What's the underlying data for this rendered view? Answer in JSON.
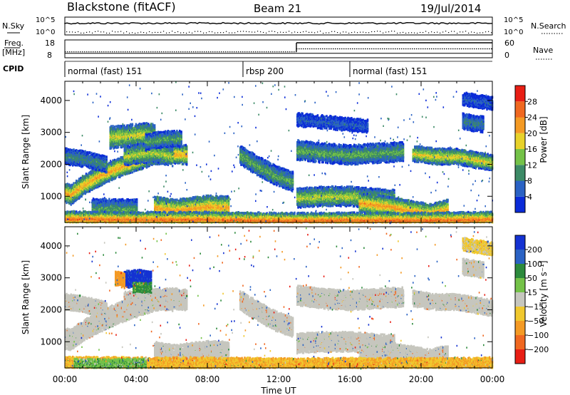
{
  "header": {
    "station": "Blackstone (fitACF)",
    "beam": "Beam 21",
    "date": "19/Jul/2014"
  },
  "noise_panel": {
    "left_label": "N.Sky",
    "right_label": "N.Search",
    "left_ticks": [
      "10^5",
      "10^0"
    ],
    "right_ticks": [
      "10^5",
      "10^0"
    ]
  },
  "freq_panel": {
    "left_label_1": "Freq.",
    "left_label_2": "[MHz]",
    "right_label": "Nave",
    "left_ticks": [
      "18",
      "8"
    ],
    "right_ticks": [
      "60",
      "0"
    ],
    "freq_mhz": 10.5,
    "nave_segments": [
      {
        "start_hour": 0,
        "end_hour": 13,
        "value": 20
      },
      {
        "start_hour": 13,
        "end_hour": 24,
        "value": 30
      }
    ]
  },
  "cpid": {
    "label": "CPID",
    "segments": [
      {
        "start_hour": 0,
        "end_hour": 10,
        "label": "normal (fast) 151"
      },
      {
        "start_hour": 10,
        "end_hour": 16,
        "label": "rbsp 200"
      },
      {
        "start_hour": 16,
        "end_hour": 24,
        "label": "normal (fast) 151"
      }
    ]
  },
  "chart_data": [
    {
      "type": "heatmap",
      "quantity": "power",
      "ylabel": "Slant Range [km]",
      "ylim": [
        180,
        4600
      ],
      "yticks": [
        "1000",
        "2000",
        "3000",
        "4000"
      ],
      "colorbar": {
        "label": "Power [dB]",
        "ticks": [
          "4",
          "8",
          "12",
          "16",
          "20",
          "24",
          "28"
        ],
        "colors": [
          "#0a2bd8",
          "#2a62c4",
          "#3c8a66",
          "#74c248",
          "#e8d22a",
          "#f49a24",
          "#f06820",
          "#e81e14"
        ]
      },
      "bands": [
        {
          "t": [
            0.0,
            0.3,
            1.0,
            2.0,
            3.0,
            4.0,
            5.0,
            6.0,
            6.8
          ],
          "r": [
            1100,
            1050,
            1350,
            1650,
            1900,
            2100,
            2300,
            2350,
            2300
          ],
          "w": 300,
          "db": 22
        },
        {
          "t": [
            2.5,
            3.5,
            4.5,
            5.0
          ],
          "r": [
            2850,
            2900,
            2950,
            2900
          ],
          "w": 350,
          "db": 18
        },
        {
          "t": [
            3.3,
            4.3,
            5.2,
            6.0
          ],
          "r": [
            2250,
            2350,
            2350,
            2250
          ],
          "w": 300,
          "db": 17
        },
        {
          "t": [
            0.0,
            0.8,
            1.6,
            2.3
          ],
          "r": [
            2250,
            2200,
            2100,
            2000
          ],
          "w": 250,
          "db": 10
        },
        {
          "t": [
            4.5,
            5.5,
            6.5
          ],
          "r": [
            2700,
            2800,
            2800
          ],
          "w": 250,
          "db": 12
        },
        {
          "t": [
            5.0,
            6.2,
            7.0,
            8.0,
            9.2
          ],
          "r": [
            650,
            550,
            620,
            680,
            650
          ],
          "w": 350,
          "db": 22
        },
        {
          "t": [
            1.5,
            2.8,
            4.0
          ],
          "r": [
            620,
            600,
            600
          ],
          "w": 300,
          "db": 12
        },
        {
          "t": [
            9.8,
            10.8,
            11.8,
            12.8
          ],
          "r": [
            2300,
            1950,
            1650,
            1450
          ],
          "w": 300,
          "db": 13
        },
        {
          "t": [
            13.0,
            14.5,
            16.0,
            17.0,
            18.5
          ],
          "r": [
            950,
            1000,
            1000,
            950,
            900
          ],
          "w": 300,
          "db": 17
        },
        {
          "t": [
            16.5,
            18.0,
            19.5,
            20.5,
            21.5
          ],
          "r": [
            800,
            700,
            550,
            450,
            600
          ],
          "w": 300,
          "db": 23
        },
        {
          "t": [
            13.0,
            14.5,
            16.0,
            17.5,
            19.0
          ],
          "r": [
            2450,
            2350,
            2300,
            2350,
            2400
          ],
          "w": 300,
          "db": 13
        },
        {
          "t": [
            19.5,
            20.8,
            22.0,
            24.0
          ],
          "r": [
            2350,
            2250,
            2250,
            2050
          ],
          "w": 250,
          "db": 19
        },
        {
          "t": [
            0.0,
            4.0,
            8.0,
            12.0,
            16.0,
            20.0,
            24.0
          ],
          "r": [
            300,
            280,
            280,
            250,
            260,
            260,
            280
          ],
          "w": 220,
          "db": 26
        },
        {
          "t": [
            22.3,
            23.5
          ],
          "r": [
            3350,
            3250
          ],
          "w": 250,
          "db": 9
        },
        {
          "t": [
            22.3,
            24.0
          ],
          "r": [
            4050,
            3900
          ],
          "w": 200,
          "db": 6
        },
        {
          "t": [
            13.0,
            15.0,
            17.0
          ],
          "r": [
            3400,
            3300,
            3200
          ],
          "w": 200,
          "db": 6
        }
      ]
    },
    {
      "type": "heatmap",
      "quantity": "velocity",
      "xlabel": "Time UT",
      "ylabel": "Slant Range [km]",
      "ylim": [
        180,
        4600
      ],
      "yticks": [
        "1000",
        "2000",
        "3000",
        "4000"
      ],
      "xticks": [
        "00:00",
        "04:00",
        "08:00",
        "12:00",
        "16:00",
        "20:00",
        "00:00"
      ],
      "colorbar": {
        "label": "Velocity [m s⁻¹]",
        "ticks": [
          "200",
          "100",
          "50",
          "15",
          "−15",
          "−50",
          "−100",
          "−200"
        ],
        "colors": [
          "#1432d2",
          "#2a62c4",
          "#2c8a3c",
          "#74c248",
          "#c6c6be",
          "#f0c82e",
          "#f49a24",
          "#f06820",
          "#e81e14"
        ]
      },
      "bands": [
        {
          "t": [
            0.0,
            0.3,
            1.0,
            2.0,
            3.0,
            4.0,
            5.0,
            6.0,
            6.8
          ],
          "r": [
            1100,
            1050,
            1350,
            1650,
            1900,
            2100,
            2300,
            2350,
            2300
          ],
          "w": 320,
          "v": 0
        },
        {
          "t": [
            3.3,
            4.3,
            5.2,
            6.0
          ],
          "r": [
            2250,
            2350,
            2350,
            2250
          ],
          "w": 300,
          "v": 0
        },
        {
          "t": [
            5.0,
            6.2,
            7.0,
            8.0,
            9.2
          ],
          "r": [
            650,
            550,
            620,
            680,
            650
          ],
          "w": 350,
          "v": 0
        },
        {
          "t": [
            9.8,
            10.8,
            11.8,
            12.8
          ],
          "r": [
            2300,
            1950,
            1650,
            1450
          ],
          "w": 300,
          "v": 0
        },
        {
          "t": [
            13.0,
            14.5,
            16.0,
            17.0,
            18.5
          ],
          "r": [
            950,
            1000,
            1000,
            950,
            900
          ],
          "w": 300,
          "v": 0
        },
        {
          "t": [
            16.5,
            18.0,
            19.5,
            20.5,
            21.5
          ],
          "r": [
            800,
            700,
            550,
            450,
            600
          ],
          "w": 300,
          "v": 0
        },
        {
          "t": [
            13.0,
            14.5,
            16.0,
            17.5,
            19.0
          ],
          "r": [
            2450,
            2350,
            2300,
            2350,
            2400
          ],
          "w": 300,
          "v": 0
        },
        {
          "t": [
            19.5,
            20.8,
            22.0,
            24.0
          ],
          "r": [
            2350,
            2250,
            2250,
            2050
          ],
          "w": 250,
          "v": 0
        },
        {
          "t": [
            0.0,
            0.8,
            1.6,
            2.3
          ],
          "r": [
            2250,
            2200,
            2100,
            2000
          ],
          "w": 250,
          "v": 0
        },
        {
          "t": [
            0.0,
            4.0,
            8.0,
            12.0,
            16.0,
            20.0,
            24.0
          ],
          "r": [
            300,
            280,
            280,
            250,
            260,
            260,
            280
          ],
          "w": 220,
          "v": -30
        },
        {
          "t": [
            0.5,
            2.5,
            4.5
          ],
          "r": [
            320,
            300,
            330
          ],
          "w": 150,
          "v": 25
        },
        {
          "t": [
            3.3,
            4.0,
            4.8
          ],
          "r": [
            2950,
            3000,
            2950
          ],
          "w": 260,
          "v": 160
        },
        {
          "t": [
            2.8,
            3.3
          ],
          "r": [
            3000,
            2900
          ],
          "w": 220,
          "v": -60
        },
        {
          "t": [
            3.8,
            4.8
          ],
          "r": [
            2700,
            2700
          ],
          "w": 150,
          "v": 40
        },
        {
          "t": [
            22.3,
            23.5
          ],
          "r": [
            3350,
            3250
          ],
          "w": 250,
          "v": 0
        },
        {
          "t": [
            22.3,
            24.0
          ],
          "r": [
            4050,
            3900
          ],
          "w": 200,
          "v": -20
        }
      ]
    }
  ]
}
